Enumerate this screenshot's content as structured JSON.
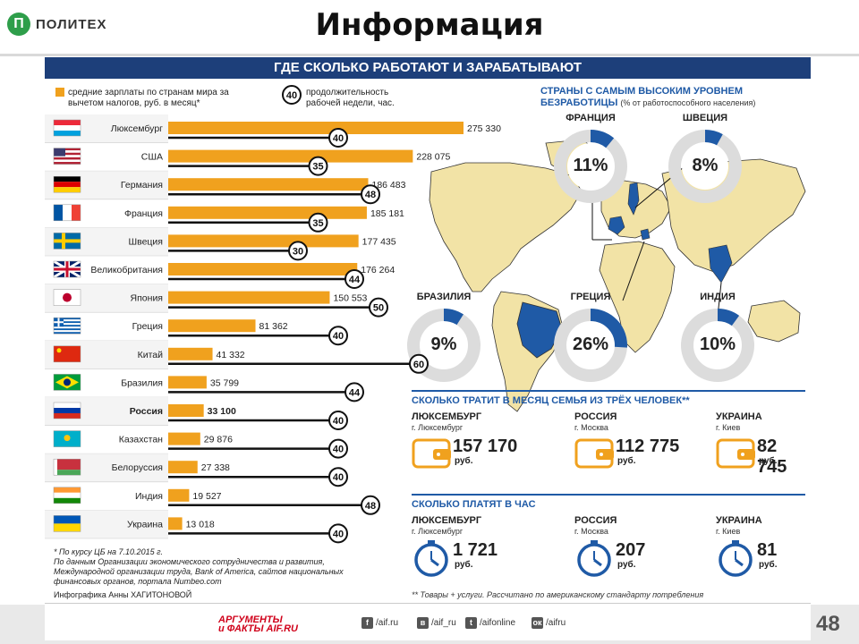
{
  "header": {
    "logo_mark": "П",
    "logo_text": "ПОЛИТЕХ",
    "title": "Информация"
  },
  "poster_title": "ГДЕ СКОЛЬКО РАБОТАЮТ И ЗАРАБАТЫВАЮТ",
  "legend": {
    "salary_text": "средние зарплаты по странам мира за вычетом налогов, руб. в месяц*",
    "hours_badge": "40",
    "hours_text": "продолжительность рабочей недели, час."
  },
  "chart_data": {
    "type": "bar",
    "categories": [
      "Люксембург",
      "США",
      "Германия",
      "Франция",
      "Швеция",
      "Великобритания",
      "Япония",
      "Греция",
      "Китай",
      "Бразилия",
      "Россия",
      "Казахстан",
      "Белоруссия",
      "Индия",
      "Украина"
    ],
    "series": [
      {
        "name": "средние зарплаты по странам мира за вычетом налогов, руб. в месяц*",
        "values": [
          275330,
          228075,
          186483,
          185181,
          177435,
          176264,
          150553,
          81362,
          41332,
          35799,
          33100,
          29876,
          27338,
          19527,
          13018
        ]
      },
      {
        "name": "продолжительность рабочей недели, час.",
        "values": [
          40,
          35,
          48,
          35,
          30,
          44,
          50,
          40,
          60,
          44,
          40,
          40,
          40,
          48,
          40
        ]
      }
    ],
    "value_labels": [
      "275 330",
      "228 075",
      "186 483",
      "185 181",
      "177 435",
      "176 264",
      "150 553",
      "81 362",
      "41 332",
      "35 799",
      "33 100",
      "29 876",
      "27 338",
      "19 527",
      "13 018"
    ],
    "highlight": "Россия",
    "colors": {
      "bar": "#f0a11e",
      "hours_line": "#111111"
    }
  },
  "flags": {
    "Люксембург": [
      "#ed2939",
      "#ffffff",
      "#00a1de"
    ],
    "США": [
      "#b22234",
      "#ffffff",
      "#3c3b6e"
    ],
    "Германия": [
      "#000000",
      "#dd0000",
      "#ffce00"
    ],
    "Франция": [
      "#0055a4",
      "#ffffff",
      "#ef4135"
    ],
    "Швеция": [
      "#006aa7",
      "#fecc00"
    ],
    "Великобритания": [
      "#012169",
      "#ffffff",
      "#c8102e"
    ],
    "Япония": [
      "#ffffff",
      "#bc002d"
    ],
    "Греция": [
      "#0d5eaf",
      "#ffffff"
    ],
    "Китай": [
      "#de2910",
      "#ffde00"
    ],
    "Бразилия": [
      "#009c3b",
      "#ffdf00",
      "#002776"
    ],
    "Россия": [
      "#ffffff",
      "#0039a6",
      "#d52b1e"
    ],
    "Казахстан": [
      "#00afca",
      "#fec50c"
    ],
    "Белоруссия": [
      "#c8313e",
      "#4aa657"
    ],
    "Индия": [
      "#ff9933",
      "#ffffff",
      "#138808"
    ],
    "Украина": [
      "#0057b7",
      "#ffd700"
    ]
  },
  "footnotes": {
    "line1": "* По курсу ЦБ на 7.10.2015 г.",
    "line2": "По данным Организации экономического сотрудничества и развития, Международной организации труда, Bank of America, сайтов национальных финансовых органов, портала Numbeo.com",
    "credit": "Инфографика Анны ХАГИТОНОВОЙ"
  },
  "unemployment": {
    "heading": "СТРАНЫ С САМЫМ ВЫСОКИМ УРОВНЕМ БЕЗРАБОТИЦЫ",
    "heading_note": "(% от работоспособного населения)",
    "items": [
      {
        "country": "ФРАНЦИЯ",
        "value": 11,
        "label": "11%"
      },
      {
        "country": "ШВЕЦИЯ",
        "value": 8,
        "label": "8%"
      },
      {
        "country": "БРАЗИЛИЯ",
        "value": 9,
        "label": "9%"
      },
      {
        "country": "ГРЕЦИЯ",
        "value": 26,
        "label": "26%"
      },
      {
        "country": "ИНДИЯ",
        "value": 10,
        "label": "10%"
      }
    ]
  },
  "spending": {
    "heading": "СКОЛЬКО ТРАТИТ В МЕСЯЦ СЕМЬЯ ИЗ ТРЁХ ЧЕЛОВЕК**",
    "items": [
      {
        "country": "ЛЮКСЕМБУРГ",
        "city": "г. Люксембург",
        "amount": "157 170",
        "unit": "руб."
      },
      {
        "country": "РОССИЯ",
        "city": "г. Москва",
        "amount": "112 775",
        "unit": "руб."
      },
      {
        "country": "УКРАИНА",
        "city": "г. Киев",
        "amount": "82 745",
        "unit": "руб."
      }
    ]
  },
  "hourly": {
    "heading": "СКОЛЬКО ПЛАТЯТ В ЧАС",
    "items": [
      {
        "country": "ЛЮКСЕМБУРГ",
        "city": "г. Люксембург",
        "amount": "1 721",
        "unit": "руб."
      },
      {
        "country": "РОССИЯ",
        "city": "г. Москва",
        "amount": "207",
        "unit": "руб."
      },
      {
        "country": "УКРАИНА",
        "city": "г. Киев",
        "amount": "81",
        "unit": "руб."
      }
    ]
  },
  "cost_note": "** Товары + услуги. Рассчитано по американскому стандарту потребления",
  "footer": {
    "aif_line1": "АРГУМЕНТЫ",
    "aif_line2": "и ФАКТЫ AIF.RU",
    "social": [
      {
        "icon": "f",
        "label": "/aif.ru"
      },
      {
        "icon": "в",
        "label": "/aif_ru"
      },
      {
        "icon": "t",
        "label": "/aifonline"
      },
      {
        "icon": "ок",
        "label": "/aifru"
      }
    ],
    "page_number": "48"
  },
  "colors": {
    "navy": "#1d3f7a",
    "accent_blue": "#1f5aa6",
    "orange": "#f0a11e",
    "map_fill": "#f2e3a6"
  }
}
